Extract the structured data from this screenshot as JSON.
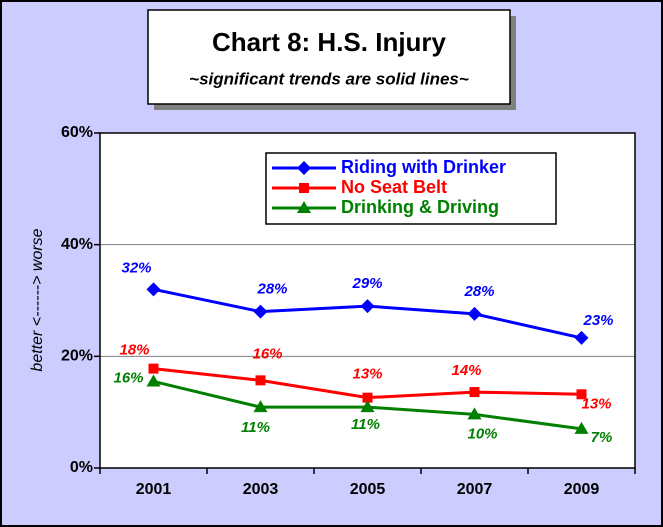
{
  "chart_data": {
    "type": "line",
    "title": "Chart 8:  H.S. Injury",
    "subtitle": "~significant trends are solid lines~",
    "ylabel": "better <------> worse",
    "categories": [
      "2001",
      "2003",
      "2005",
      "2007",
      "2009"
    ],
    "series": [
      {
        "name": "Riding with Drinker",
        "color": "#0000ff",
        "marker": "diamond",
        "values": [
          32,
          28,
          29,
          27.6,
          23.3
        ],
        "value_labels": [
          "32%",
          "28%",
          "29%",
          "28%",
          "23%"
        ]
      },
      {
        "name": "No Seat Belt",
        "color": "#ff0000",
        "marker": "square",
        "values": [
          17.8,
          15.7,
          12.6,
          13.6,
          13.2
        ],
        "value_labels": [
          "18%",
          "16%",
          "13%",
          "14%",
          "13%"
        ]
      },
      {
        "name": "Drinking & Driving",
        "color": "#008000",
        "marker": "triangle",
        "values": [
          15.5,
          10.9,
          10.9,
          9.6,
          7.0
        ],
        "value_labels": [
          "16%",
          "11%",
          "11%",
          "10%",
          "7%"
        ]
      }
    ],
    "ylim": [
      0,
      60
    ],
    "yticks": [
      {
        "value": 0,
        "label": "0%"
      },
      {
        "value": 20,
        "label": "20%"
      },
      {
        "value": 40,
        "label": "40%"
      },
      {
        "value": 60,
        "label": "60%"
      }
    ],
    "grid": true,
    "legend": "top-right"
  }
}
